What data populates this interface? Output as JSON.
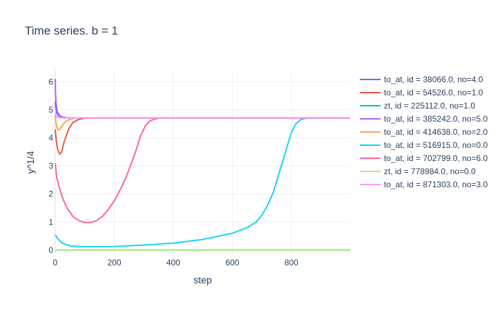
{
  "chart_data": {
    "type": "line",
    "title": "Time series.  b = 1",
    "xlabel": "step",
    "ylabel": "y^1/4",
    "xlim": [
      0,
      999
    ],
    "ylim": [
      -0.2,
      6.45
    ],
    "xticks": [
      0,
      200,
      400,
      600,
      800
    ],
    "yticks": [
      0,
      1,
      2,
      3,
      4,
      5,
      6
    ],
    "grid": true,
    "legend_position": "right",
    "series": [
      {
        "name": "to_at, id = 38066.0, no=4.0",
        "color": "#636efa",
        "x": [
          0,
          2,
          5,
          10,
          20,
          35,
          50,
          70,
          999
        ],
        "y": [
          5.3,
          5.05,
          4.9,
          4.8,
          4.74,
          4.72,
          4.71,
          4.71,
          4.71
        ]
      },
      {
        "name": "to_at, id = 54526.0, no=1.0",
        "color": "#EF553B",
        "x": [
          0,
          3,
          8,
          15,
          22,
          30,
          45,
          60,
          80,
          100,
          130,
          999
        ],
        "y": [
          4.3,
          3.95,
          3.6,
          3.42,
          3.5,
          3.85,
          4.3,
          4.55,
          4.66,
          4.7,
          4.71,
          4.71
        ]
      },
      {
        "name": "zt, id = 225112.0, no=1.0",
        "color": "#00cc96",
        "x": [
          0,
          999
        ],
        "y": [
          0.0,
          0.0
        ]
      },
      {
        "name": "to_at, id = 385242.0, no=5.0",
        "color": "#ab63fa",
        "x": [
          0,
          1,
          3,
          6,
          10,
          18,
          30,
          45,
          60,
          999
        ],
        "y": [
          6.1,
          5.6,
          5.2,
          4.97,
          4.86,
          4.77,
          4.73,
          4.71,
          4.71,
          4.71
        ]
      },
      {
        "name": "to_at, id = 414638.0, no=2.0",
        "color": "#FFA15A",
        "x": [
          0,
          3,
          8,
          14,
          20,
          30,
          40,
          55,
          70,
          999
        ],
        "y": [
          4.8,
          4.5,
          4.3,
          4.28,
          4.38,
          4.52,
          4.62,
          4.68,
          4.71,
          4.71
        ]
      },
      {
        "name": "to_at, id = 516915.0, no=0.0",
        "color": "#19d3f3",
        "x": [
          0,
          10,
          25,
          50,
          80,
          120,
          200,
          300,
          400,
          500,
          600,
          650,
          680,
          700,
          720,
          740,
          760,
          780,
          800,
          815,
          830,
          845,
          860,
          880,
          999
        ],
        "y": [
          0.55,
          0.38,
          0.24,
          0.15,
          0.13,
          0.12,
          0.13,
          0.18,
          0.25,
          0.38,
          0.6,
          0.8,
          1.0,
          1.25,
          1.6,
          2.1,
          2.8,
          3.5,
          4.2,
          4.5,
          4.64,
          4.69,
          4.71,
          4.71,
          4.71
        ]
      },
      {
        "name": "to_at, id = 702799.0, no=6.0",
        "color": "#FF6692",
        "x": [
          0,
          5,
          12,
          25,
          40,
          60,
          80,
          100,
          120,
          140,
          160,
          180,
          200,
          220,
          240,
          260,
          275,
          290,
          305,
          320,
          340,
          360,
          999
        ],
        "y": [
          3.1,
          2.6,
          2.3,
          1.85,
          1.5,
          1.2,
          1.05,
          0.98,
          0.98,
          1.05,
          1.2,
          1.45,
          1.75,
          2.15,
          2.6,
          3.15,
          3.6,
          4.1,
          4.42,
          4.6,
          4.68,
          4.71,
          4.71
        ]
      },
      {
        "name": "zt, id = 778984.0, no=0.0",
        "color": "#B6E880",
        "x": [
          0,
          999
        ],
        "y": [
          0.0,
          0.0
        ]
      },
      {
        "name": "to_at, id = 871303.0, no=3.0",
        "color": "#FF97FF",
        "x": [
          0,
          2,
          5,
          10,
          20,
          35,
          50,
          999
        ],
        "y": [
          4.9,
          4.8,
          4.75,
          4.72,
          4.71,
          4.71,
          4.71,
          4.71
        ]
      }
    ]
  }
}
